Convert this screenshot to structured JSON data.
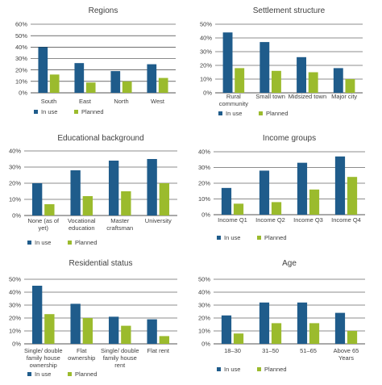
{
  "colors": {
    "in_use": "#1f5c8b",
    "planned": "#9bbb2d"
  },
  "chart_data": [
    {
      "type": "bar",
      "title": "Regions",
      "categories": [
        [
          "South"
        ],
        [
          "East"
        ],
        [
          "North"
        ],
        [
          "West"
        ]
      ],
      "yticks": [
        "0%",
        "10%",
        "20%",
        "30%",
        "40%",
        "50%",
        "60%"
      ],
      "ylim": [
        0,
        60
      ],
      "series": [
        {
          "name": "In use",
          "values": [
            40,
            26,
            19,
            25
          ]
        },
        {
          "name": "Planned",
          "values": [
            16,
            9,
            10,
            13
          ]
        }
      ],
      "legend": "none"
    },
    {
      "type": "bar",
      "title": "Settlement structure",
      "categories": [
        [
          "Rural",
          "community"
        ],
        [
          "Small town"
        ],
        [
          "Midsized town"
        ],
        [
          "Major city"
        ]
      ],
      "yticks": [
        "0%",
        "10%",
        "20%",
        "30%",
        "40%",
        "50%"
      ],
      "ylim": [
        0,
        50
      ],
      "series": [
        {
          "name": "In use",
          "values": [
            44,
            37,
            26,
            18
          ]
        },
        {
          "name": "Planned",
          "values": [
            18,
            16,
            15,
            10
          ]
        }
      ],
      "legend": "bottom-left"
    },
    {
      "type": "bar",
      "title": "Educational background",
      "categories": [
        [
          "None (as of",
          "yet)"
        ],
        [
          "Vocational",
          "education"
        ],
        [
          "Master",
          "craftsman"
        ],
        [
          "University"
        ]
      ],
      "yticks": [
        "0%",
        "10%",
        "20%",
        "30%",
        "40%"
      ],
      "ylim": [
        0,
        40
      ],
      "series": [
        {
          "name": "In use",
          "values": [
            20,
            28,
            34,
            35
          ]
        },
        {
          "name": "Planned",
          "values": [
            7,
            12,
            15,
            20
          ]
        }
      ],
      "legend": "bottom-left"
    },
    {
      "type": "bar",
      "title": "Income groups",
      "categories": [
        [
          "Income Q1"
        ],
        [
          "Income Q2"
        ],
        [
          "Income Q3"
        ],
        [
          "Income Q4"
        ]
      ],
      "yticks": [
        "0%",
        "10%",
        "20%",
        "30%",
        "40%"
      ],
      "ylim": [
        0,
        40
      ],
      "series": [
        {
          "name": "In use",
          "values": [
            17,
            28,
            33,
            37
          ]
        },
        {
          "name": "Planned",
          "values": [
            7,
            8,
            16,
            24
          ]
        }
      ],
      "legend": "bottom-left"
    },
    {
      "type": "bar",
      "title": "Residential status",
      "categories": [
        [
          "Single/ double",
          "family house",
          "ownership"
        ],
        [
          "Flat",
          "ownership"
        ],
        [
          "Single/ double",
          "family house",
          "rent"
        ],
        [
          "Flat rent"
        ]
      ],
      "yticks": [
        "0%",
        "10%",
        "20%",
        "30%",
        "40%",
        "50%"
      ],
      "ylim": [
        0,
        50
      ],
      "series": [
        {
          "name": "In use",
          "values": [
            45,
            31,
            21,
            19
          ]
        },
        {
          "name": "Planned",
          "values": [
            23,
            20,
            14,
            6
          ]
        }
      ],
      "legend": "bottom-left"
    },
    {
      "type": "bar",
      "title": "Age",
      "categories": [
        [
          "18–30"
        ],
        [
          "31–50"
        ],
        [
          "51–65"
        ],
        [
          "Above 65",
          "Years"
        ]
      ],
      "yticks": [
        "0%",
        "10%",
        "20%",
        "30%",
        "40%",
        "50%"
      ],
      "ylim": [
        0,
        50
      ],
      "series": [
        {
          "name": "In use",
          "values": [
            22,
            32,
            32,
            24
          ]
        },
        {
          "name": "Planned",
          "values": [
            8,
            16,
            16,
            10
          ]
        }
      ],
      "legend": "bottom-left"
    }
  ]
}
